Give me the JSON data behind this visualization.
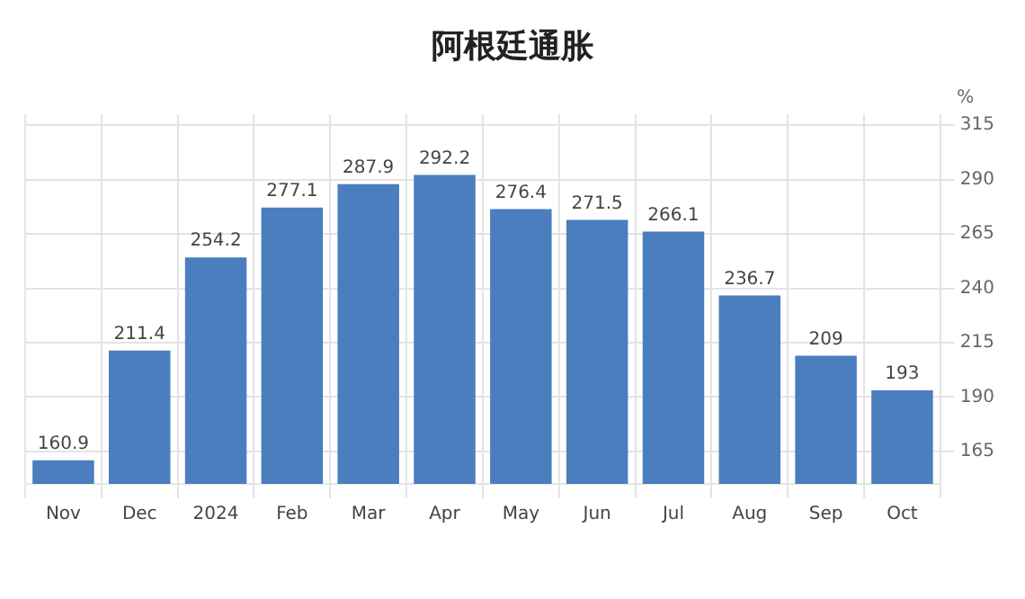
{
  "chart_data": {
    "type": "bar",
    "title": "阿根廷通胀",
    "ylabel": "%",
    "categories": [
      "Nov",
      "Dec",
      "2024",
      "Feb",
      "Mar",
      "Apr",
      "May",
      "Jun",
      "Jul",
      "Aug",
      "Sep",
      "Oct"
    ],
    "values": [
      160.9,
      211.4,
      254.2,
      277.1,
      287.9,
      292.2,
      276.4,
      271.5,
      266.1,
      236.7,
      209,
      193
    ],
    "color": "#4a7ebf",
    "ylim": [
      150,
      320
    ],
    "yticks": [
      165,
      190,
      215,
      240,
      265,
      290,
      315
    ],
    "grid": true,
    "data_labels": true
  }
}
